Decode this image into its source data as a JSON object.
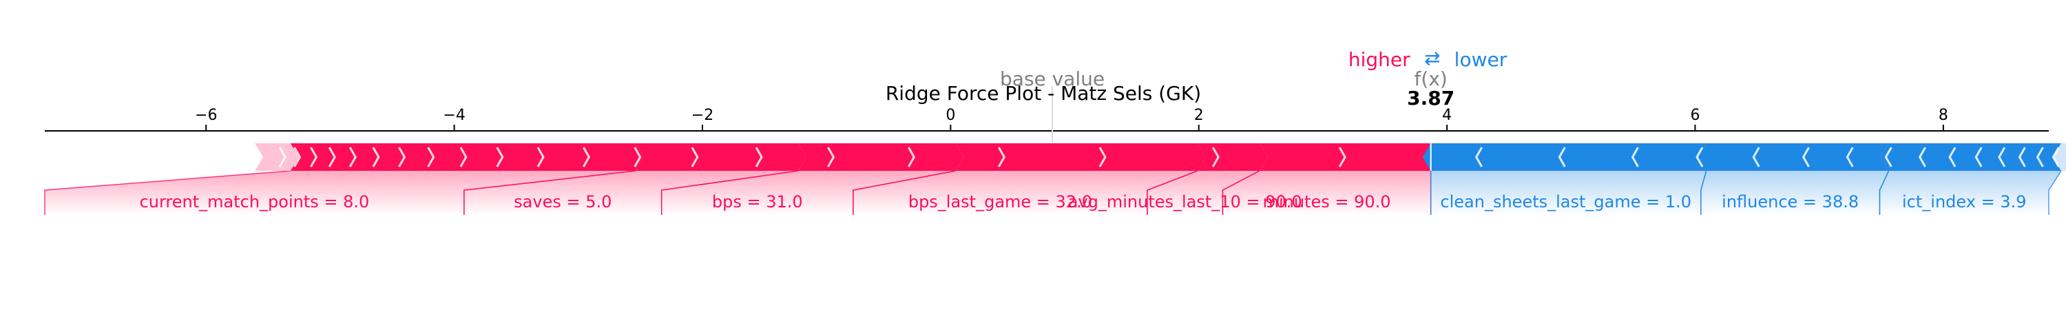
{
  "chart_data": {
    "type": "force",
    "title": "Ridge Force Plot - Matz Sels (GK)",
    "legend": {
      "higher": "higher",
      "arrow": "⇄",
      "lower": "lower"
    },
    "base_value_label": "base value",
    "fx_label": "f(x)",
    "fx_value_text": "3.87",
    "base_value": 0.82,
    "output_value": 3.87,
    "xlim": [
      -7.3,
      8.85
    ],
    "ticks": [
      {
        "value": -6,
        "label": "−6"
      },
      {
        "value": -4,
        "label": "−4"
      },
      {
        "value": -2,
        "label": "−2"
      },
      {
        "value": 0,
        "label": "0"
      },
      {
        "value": 2,
        "label": "2"
      },
      {
        "value": 4,
        "label": "4"
      },
      {
        "value": 6,
        "label": "6"
      },
      {
        "value": 8,
        "label": "8"
      }
    ],
    "positive_features": [
      {
        "label": "minutes = 90.0",
        "contribution": 1.38
      },
      {
        "label": "avg_minutes_last_10 = 90.0",
        "contribution": 0.5
      },
      {
        "label": "bps_last_game = 32.0",
        "contribution": 1.95
      },
      {
        "label": "bps = 31.0",
        "contribution": 1.27
      },
      {
        "label": "saves = 5.0",
        "contribution": 1.31
      },
      {
        "label": "current_match_points = 8.0",
        "contribution": 2.78
      },
      {
        "label": "",
        "contribution": 0.22
      }
    ],
    "negative_features": [
      {
        "label": "clean_sheets_last_game = 1.0",
        "contribution": 2.22
      },
      {
        "label": "influence = 38.8",
        "contribution": 1.47
      },
      {
        "label": "ict_index = 3.9",
        "contribution": 1.39
      },
      {
        "label": "",
        "contribution": 0.15
      }
    ],
    "colors": {
      "positive": "#ff0d57",
      "negative": "#1e88e5",
      "positive_light": "#ffc3d5",
      "negative_light": "#d1e6fa",
      "axis": "#000000",
      "muted": "#808080"
    }
  }
}
